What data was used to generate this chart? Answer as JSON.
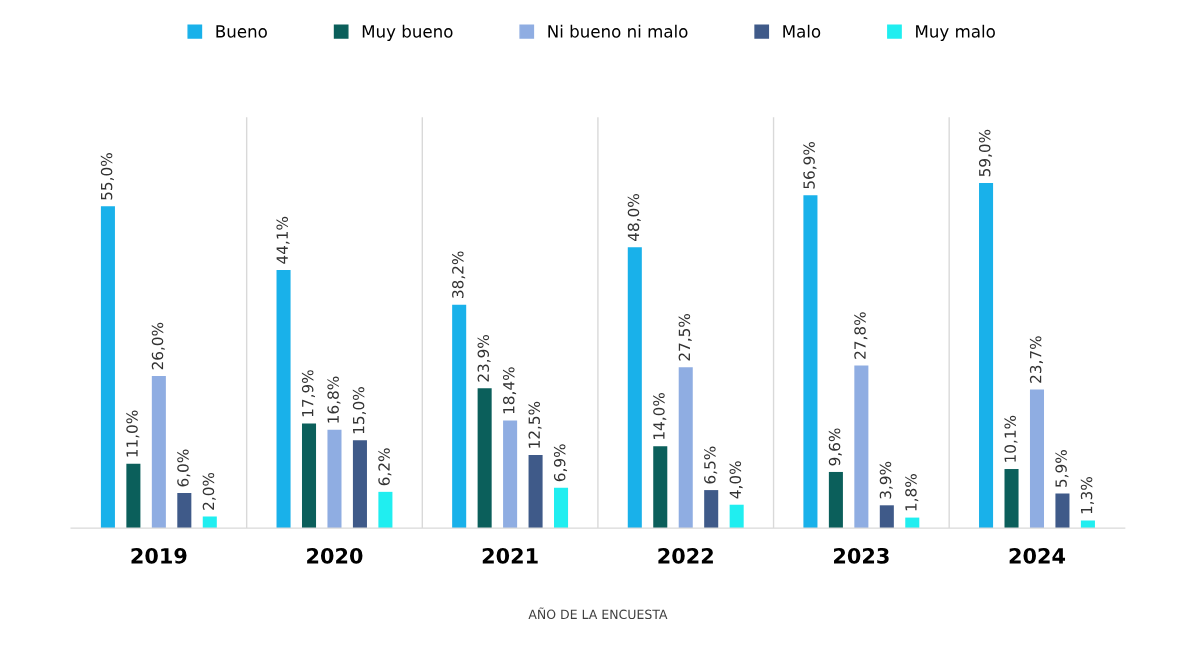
{
  "chart_data": {
    "type": "bar",
    "xlabel": "AÑO DE LA ENCUESTA",
    "categories": [
      "2019",
      "2020",
      "2021",
      "2022",
      "2023",
      "2024"
    ],
    "series": [
      {
        "name": "Bueno",
        "color": "#19b1ea",
        "values": [
          55.0,
          44.1,
          38.2,
          48.0,
          56.9,
          59.0
        ],
        "value_labels": [
          "55,0%",
          "44,1%",
          "38,2%",
          "48,0%",
          "56,9%",
          "59,0%"
        ]
      },
      {
        "name": "Muy bueno",
        "color": "#0b5f5b",
        "values": [
          11.0,
          17.9,
          23.9,
          14.0,
          9.6,
          10.1
        ],
        "value_labels": [
          "11,0%",
          "17,9%",
          "23,9%",
          "14,0%",
          "9,6%",
          "10,1%"
        ]
      },
      {
        "name": "Ni bueno ni malo",
        "color": "#8fade2",
        "values": [
          26.0,
          16.8,
          18.4,
          27.5,
          27.8,
          23.7
        ],
        "value_labels": [
          "26,0%",
          "16,8%",
          "18,4%",
          "27,5%",
          "27,8%",
          "23,7%"
        ]
      },
      {
        "name": "Malo",
        "color": "#3f5a89",
        "values": [
          6.0,
          15.0,
          12.5,
          6.5,
          3.9,
          5.9
        ],
        "value_labels": [
          "6,0%",
          "15,0%",
          "12,5%",
          "6,5%",
          "3,9%",
          "5,9%"
        ]
      },
      {
        "name": "Muy malo",
        "color": "#20eef0",
        "values": [
          2.0,
          6.2,
          6.9,
          4.0,
          1.8,
          1.3
        ],
        "value_labels": [
          "2,0%",
          "6,2%",
          "6,9%",
          "4,0%",
          "1,8%",
          "1,3%"
        ]
      }
    ],
    "legend": "top"
  }
}
